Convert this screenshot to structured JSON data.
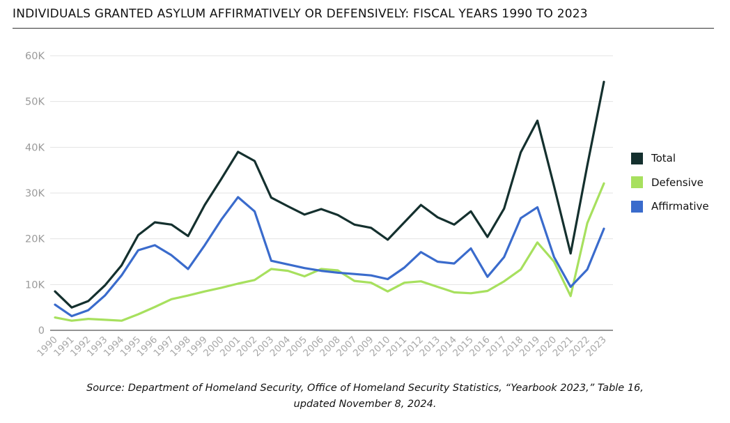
{
  "title": "INDIVIDUALS GRANTED ASYLUM AFFIRMATIVELY OR DEFENSIVELY: FISCAL YEARS 1990 TO 2023",
  "source_lines": [
    "Source: Department of Homeland Security, Office of Homeland Security Statistics, “Yearbook 2023,” Table 16,",
    "updated November 8, 2024."
  ],
  "chart_data": {
    "type": "line",
    "title": "INDIVIDUALS GRANTED ASYLUM AFFIRMATIVELY OR DEFENSIVELY: FISCAL YEARS 1990 TO 2023",
    "xlabel": "",
    "ylabel": "",
    "ylim": [
      0,
      60000
    ],
    "yticks": [
      0,
      10000,
      20000,
      30000,
      40000,
      50000,
      60000
    ],
    "ytick_labels": [
      "0",
      "10K",
      "20K",
      "30K",
      "40K",
      "50K",
      "60K"
    ],
    "grid": true,
    "legend_position": "right",
    "categories": [
      "1990",
      "1991",
      "1992",
      "1993",
      "1994",
      "1995",
      "1996",
      "1997",
      "1998",
      "1999",
      "2000",
      "2001",
      "2002",
      "2003",
      "2004",
      "2005",
      "2006",
      "2008",
      "2007",
      "2009",
      "2010",
      "2011",
      "2012",
      "2013",
      "2014",
      "2015",
      "2016",
      "2017",
      "2018",
      "2019",
      "2020",
      "2021",
      "2022",
      "2023"
    ],
    "series": [
      {
        "name": "Total",
        "color": "#14302e",
        "values": [
          8500,
          5000,
          6400,
          9800,
          14200,
          20800,
          23600,
          23100,
          20600,
          27400,
          33100,
          39000,
          37000,
          29000,
          27100,
          25300,
          26500,
          25200,
          23100,
          22400,
          19800,
          23600,
          27400,
          24700,
          23100,
          26000,
          20400,
          26600,
          38900,
          45800,
          31500,
          16800,
          36000,
          54300
        ]
      },
      {
        "name": "Defensive",
        "color": "#a7e05e",
        "values": [
          2800,
          2100,
          2500,
          2300,
          2100,
          3500,
          5100,
          6800,
          7600,
          8500,
          9300,
          10200,
          11000,
          13400,
          13000,
          11800,
          13400,
          13100,
          10800,
          10400,
          8500,
          10400,
          10700,
          9500,
          8300,
          8100,
          8600,
          10700,
          13300,
          19200,
          15000,
          7500,
          23400,
          32100
        ]
      },
      {
        "name": "Affirmative",
        "color": "#3a6bcc",
        "values": [
          5600,
          3100,
          4400,
          7600,
          12000,
          17500,
          18600,
          16400,
          13400,
          18600,
          24200,
          29100,
          26000,
          15200,
          14400,
          13600,
          13000,
          12600,
          12300,
          12000,
          11200,
          13700,
          17100,
          15000,
          14600,
          17900,
          11700,
          16000,
          24500,
          26900,
          16000,
          9500,
          13300,
          22200
        ]
      }
    ]
  },
  "legend": [
    {
      "label": "Total",
      "color": "#14302e"
    },
    {
      "label": "Defensive",
      "color": "#a7e05e"
    },
    {
      "label": "Affirmative",
      "color": "#3a6bcc"
    }
  ]
}
